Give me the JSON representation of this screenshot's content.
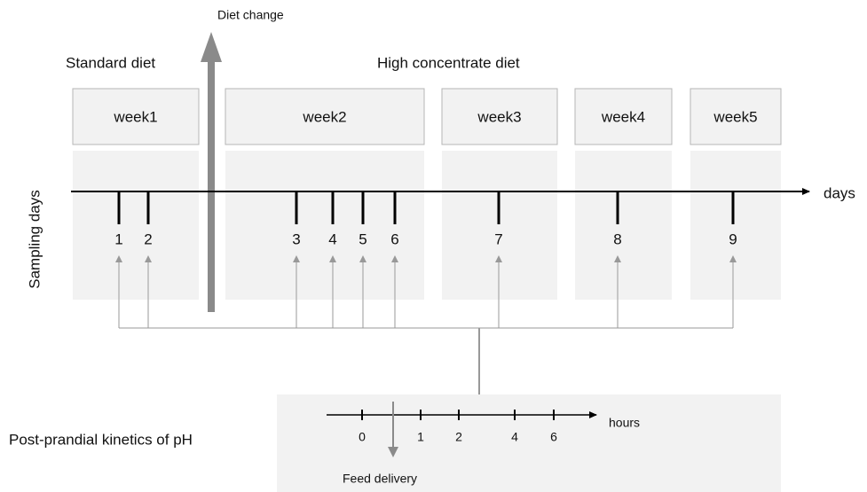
{
  "labels": {
    "diet_change": "Diet change",
    "standard_diet": "Standard diet",
    "high_diet": "High concentrate diet",
    "sampling_days": "Sampling days",
    "days": "days",
    "post_prandial": "Post-prandial kinetics of pH",
    "hours": "hours",
    "feed_delivery": "Feed delivery"
  },
  "weeks": [
    "week1",
    "week2",
    "week3",
    "week4",
    "week5"
  ],
  "sampling_days": [
    1,
    2,
    3,
    4,
    5,
    6,
    7,
    8,
    9
  ],
  "hours": [
    0,
    1,
    2,
    4,
    6
  ]
}
